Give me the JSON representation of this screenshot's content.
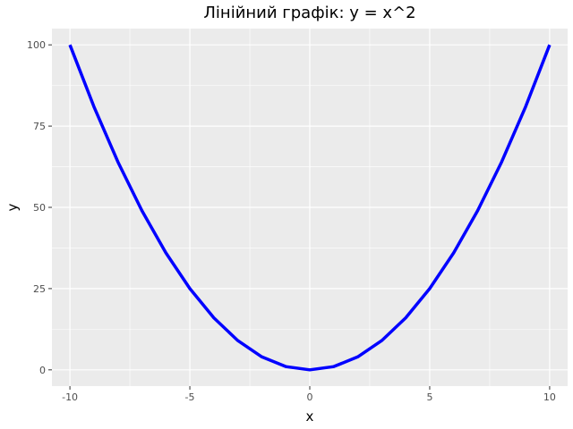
{
  "chart_data": {
    "type": "line",
    "title": "Лінійний графік: y = x^2",
    "xlabel": "x",
    "ylabel": "y",
    "xlim": [
      -10.75,
      10.75
    ],
    "ylim": [
      -5,
      105
    ],
    "x_ticks": [
      -10,
      -5,
      0,
      5,
      10
    ],
    "x_tick_labels": [
      "-10",
      "-5",
      "0",
      "5",
      "10"
    ],
    "y_ticks": [
      0,
      25,
      50,
      75,
      100
    ],
    "y_tick_labels": [
      "0",
      "25",
      "50",
      "75",
      "100"
    ],
    "x_minor_ticks": [
      -7.5,
      -2.5,
      2.5,
      7.5
    ],
    "y_minor_ticks": [
      12.5,
      37.5,
      62.5,
      87.5
    ],
    "grid": true,
    "series": [
      {
        "color": "#0000ff",
        "x": [
          -10,
          -9,
          -8,
          -7,
          -6,
          -5,
          -4,
          -3,
          -2,
          -1,
          0,
          1,
          2,
          3,
          4,
          5,
          6,
          7,
          8,
          9,
          10
        ],
        "y": [
          100,
          81,
          64,
          49,
          36,
          25,
          16,
          9,
          4,
          1,
          0,
          1,
          4,
          9,
          16,
          25,
          36,
          49,
          64,
          81,
          100
        ]
      }
    ]
  },
  "colors": {
    "panel_background": "#ebebeb",
    "grid_major": "#ffffff",
    "tick_mark": "#333333"
  }
}
